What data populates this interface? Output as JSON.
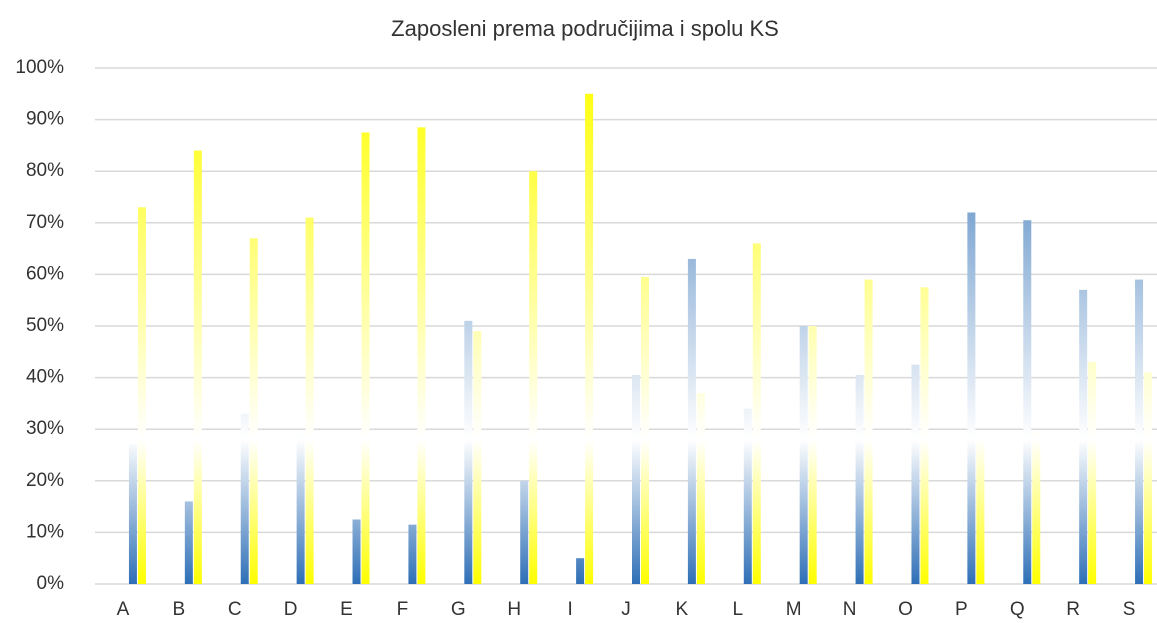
{
  "chart_data": {
    "type": "bar",
    "title": "Zaposleni prema područijima i spolu KS",
    "categories": [
      "A",
      "B",
      "C",
      "D",
      "E",
      "F",
      "G",
      "H",
      "I",
      "J",
      "K",
      "L",
      "M",
      "N",
      "O",
      "P",
      "Q",
      "R",
      "S"
    ],
    "series": [
      {
        "color": "#2e6fb6",
        "values": [
          27,
          16,
          33,
          29,
          12.5,
          11.5,
          51,
          20,
          5,
          40.5,
          63,
          34,
          50,
          40.5,
          42.5,
          72,
          70.5,
          57,
          59
        ]
      },
      {
        "color": "#ffff00",
        "values": [
          73,
          84,
          67,
          71,
          87.5,
          88.5,
          49,
          80,
          95,
          59.5,
          37,
          66,
          50,
          59,
          57.5,
          28,
          29.5,
          43,
          41
        ]
      }
    ],
    "ylim": [
      0,
      100
    ],
    "yticks": [
      {
        "value": 0,
        "label": "0%"
      },
      {
        "value": 10,
        "label": "10%"
      },
      {
        "value": 20,
        "label": "20%"
      },
      {
        "value": 30,
        "label": "30%"
      },
      {
        "value": 40,
        "label": "40%"
      },
      {
        "value": 50,
        "label": "50%"
      },
      {
        "value": 60,
        "label": "60%"
      },
      {
        "value": 70,
        "label": "70%"
      },
      {
        "value": 80,
        "label": "80%"
      },
      {
        "value": 90,
        "label": "90%"
      },
      {
        "value": 100,
        "label": "100%"
      }
    ],
    "grid": true
  }
}
